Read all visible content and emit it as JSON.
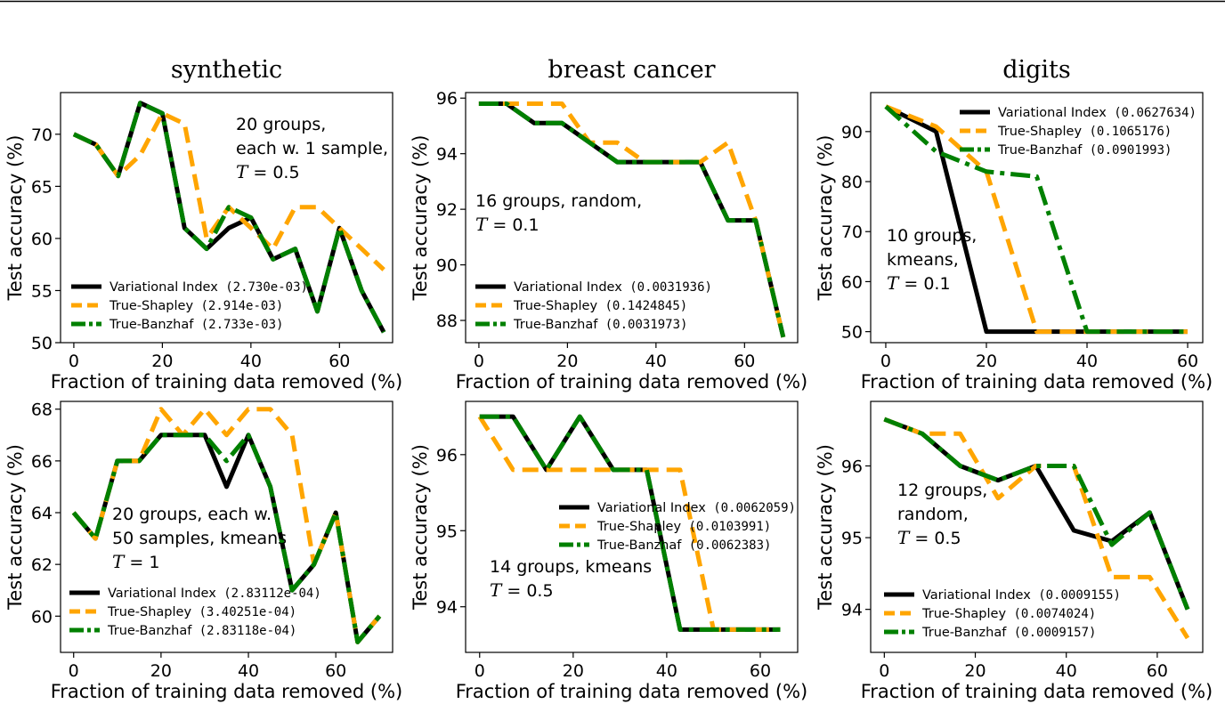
{
  "colors": {
    "variational": "#000000",
    "shapley": "#FFA500",
    "banzhaf": "#008000"
  },
  "series_names": [
    "Variational Index",
    "True-Shapley",
    "True-Banzhaf"
  ],
  "xlabel": "Fraction of training data removed (%)",
  "ylabel": "Test accuracy (%)",
  "chart_data": [
    {
      "type": "line",
      "title": "synthetic",
      "xlim": [
        -3,
        72
      ],
      "ylim": [
        50,
        74
      ],
      "xticks": [
        0,
        20,
        40,
        60
      ],
      "yticks": [
        50,
        55,
        60,
        65,
        70
      ],
      "annotation": [
        "20 groups,",
        "each w. 1 sample,"
      ],
      "T_label": "T",
      "T_value": " = 0.5",
      "series": [
        {
          "name": "Variational Index",
          "legend": "(2.730e-03)",
          "x": [
            0,
            5,
            10,
            15,
            20,
            25,
            30,
            35,
            40,
            45,
            50,
            55,
            60,
            65,
            70
          ],
          "y": [
            70,
            69,
            66,
            73,
            72,
            61,
            59,
            61,
            62,
            58,
            59,
            53,
            61,
            55,
            51
          ]
        },
        {
          "name": "True-Shapley",
          "legend": "(2.914e-03)",
          "x": [
            0,
            5,
            10,
            15,
            20,
            25,
            30,
            35,
            40,
            45,
            50,
            55,
            60,
            65,
            70
          ],
          "y": [
            70,
            69,
            66,
            68,
            72,
            71,
            60,
            63,
            61,
            59,
            63,
            63,
            61,
            59,
            57
          ]
        },
        {
          "name": "True-Banzhaf",
          "legend": "(2.733e-03)",
          "x": [
            0,
            5,
            10,
            15,
            20,
            25,
            30,
            35,
            40,
            45,
            50,
            55,
            60,
            65,
            70
          ],
          "y": [
            70,
            69,
            66,
            73,
            72,
            61,
            59,
            63,
            62,
            58,
            59,
            53,
            61,
            55,
            51
          ]
        }
      ]
    },
    {
      "type": "line",
      "title": "breast cancer",
      "xlim": [
        -3,
        72
      ],
      "ylim": [
        87.2,
        96.2
      ],
      "xticks": [
        0,
        20,
        40,
        60
      ],
      "yticks": [
        88,
        90,
        92,
        94,
        96
      ],
      "annotation": [
        "16 groups, random,"
      ],
      "T_label": "T",
      "T_value": " = 0.1",
      "series": [
        {
          "name": "Variational Index",
          "legend": "(0.0031936)",
          "x": [
            0,
            6.25,
            12.5,
            18.75,
            25,
            31.25,
            37.5,
            43.75,
            50,
            56.25,
            62.5,
            68.75
          ],
          "y": [
            95.8,
            95.8,
            95.1,
            95.1,
            94.4,
            93.7,
            93.7,
            93.7,
            93.7,
            91.6,
            91.6,
            87.4
          ]
        },
        {
          "name": "True-Shapley",
          "legend": "(0.1424845)",
          "x": [
            0,
            6.25,
            12.5,
            18.75,
            25,
            31.25,
            37.5,
            43.75,
            50,
            56.25,
            62.5,
            68.75
          ],
          "y": [
            95.8,
            95.8,
            95.8,
            95.8,
            94.4,
            94.4,
            93.7,
            93.7,
            93.7,
            94.4,
            91.6,
            87.4
          ]
        },
        {
          "name": "True-Banzhaf",
          "legend": "(0.0031973)",
          "x": [
            0,
            6.25,
            12.5,
            18.75,
            25,
            31.25,
            37.5,
            43.75,
            50,
            56.25,
            62.5,
            68.75
          ],
          "y": [
            95.8,
            95.8,
            95.1,
            95.1,
            94.4,
            93.7,
            93.7,
            93.7,
            93.7,
            91.6,
            91.6,
            87.4
          ]
        }
      ]
    },
    {
      "type": "line",
      "title": "digits",
      "xlim": [
        -3,
        63
      ],
      "ylim": [
        47.8,
        97.8
      ],
      "xticks": [
        0,
        20,
        40,
        60
      ],
      "yticks": [
        50,
        60,
        70,
        80,
        90
      ],
      "annotation": [
        "10 groups,",
        "kmeans,"
      ],
      "T_label": "T",
      "T_value": " = 0.1",
      "series": [
        {
          "name": "Variational Index",
          "legend": "(0.0627634)",
          "x": [
            0,
            10,
            20,
            30,
            40,
            50,
            60
          ],
          "y": [
            95,
            90,
            50,
            50,
            50,
            50,
            50
          ]
        },
        {
          "name": "True-Shapley",
          "legend": "(0.1065176)",
          "x": [
            0,
            10,
            20,
            30,
            40,
            50,
            60
          ],
          "y": [
            95,
            91,
            82,
            50,
            50,
            50,
            50
          ]
        },
        {
          "name": "True-Banzhaf",
          "legend": "(0.0901993)",
          "x": [
            0,
            10,
            20,
            30,
            40,
            50,
            60
          ],
          "y": [
            95,
            86,
            82,
            81,
            50,
            50,
            50
          ]
        }
      ]
    },
    {
      "type": "line",
      "title": "",
      "xlim": [
        -3,
        73
      ],
      "ylim": [
        58.6,
        68.3
      ],
      "xticks": [
        0,
        20,
        40,
        60
      ],
      "yticks": [
        60,
        62,
        64,
        66,
        68
      ],
      "annotation": [
        "20 groups, each w.",
        "50 samples, kmeans"
      ],
      "T_label": "T",
      "T_value": " = 1",
      "series": [
        {
          "name": "Variational Index",
          "legend": "(2.83112e-04)",
          "x": [
            0,
            5,
            10,
            15,
            20,
            25,
            30,
            35,
            40,
            45,
            50,
            55,
            60,
            65,
            70
          ],
          "y": [
            64,
            63,
            66,
            66,
            67,
            67,
            67,
            65,
            67,
            65,
            61,
            62,
            64,
            59,
            60
          ]
        },
        {
          "name": "True-Shapley",
          "legend": "(3.40251e-04)",
          "x": [
            0,
            5,
            10,
            15,
            20,
            25,
            30,
            35,
            40,
            45,
            50,
            55,
            60,
            65,
            70
          ],
          "y": [
            64,
            63,
            66,
            66,
            68,
            67,
            68,
            67,
            68,
            68,
            67,
            62,
            64,
            59,
            60
          ]
        },
        {
          "name": "True-Banzhaf",
          "legend": "(2.83118e-04)",
          "x": [
            0,
            5,
            10,
            15,
            20,
            25,
            30,
            35,
            40,
            45,
            50,
            55,
            60,
            65,
            70
          ],
          "y": [
            64,
            63,
            66,
            66,
            67,
            67,
            67,
            66,
            67,
            65,
            61,
            62,
            64,
            59,
            60
          ]
        }
      ]
    },
    {
      "type": "line",
      "title": "",
      "xlim": [
        -3,
        68
      ],
      "ylim": [
        93.4,
        96.7
      ],
      "xticks": [
        0,
        20,
        40,
        60
      ],
      "yticks": [
        94,
        95,
        96
      ],
      "annotation": [
        "14 groups, kmeans"
      ],
      "T_label": "T",
      "T_value": " = 0.5",
      "series": [
        {
          "name": "Variational Index",
          "legend": "(0.0062059)",
          "x": [
            0,
            7.14,
            14.29,
            21.43,
            28.57,
            35.71,
            42.86,
            50,
            57.14,
            64.29
          ],
          "y": [
            96.5,
            96.5,
            95.8,
            96.5,
            95.8,
            95.8,
            93.7,
            93.7,
            93.7,
            93.7
          ]
        },
        {
          "name": "True-Shapley",
          "legend": "(0.0103991)",
          "x": [
            0,
            7.14,
            14.29,
            21.43,
            28.57,
            35.71,
            42.86,
            50,
            57.14,
            64.29
          ],
          "y": [
            96.5,
            95.8,
            95.8,
            95.8,
            95.8,
            95.8,
            95.8,
            93.7,
            93.7,
            93.7
          ]
        },
        {
          "name": "True-Banzhaf",
          "legend": "(0.0062383)",
          "x": [
            0,
            7.14,
            14.29,
            21.43,
            28.57,
            35.71,
            42.86,
            50,
            57.14,
            64.29
          ],
          "y": [
            96.5,
            96.5,
            95.8,
            96.5,
            95.8,
            95.8,
            93.7,
            93.7,
            93.7,
            93.7
          ]
        }
      ]
    },
    {
      "type": "line",
      "title": "",
      "xlim": [
        -3,
        70
      ],
      "ylim": [
        93.4,
        96.9
      ],
      "xticks": [
        0,
        20,
        40,
        60
      ],
      "yticks": [
        94,
        95,
        96
      ],
      "annotation": [
        "12 groups,",
        "random,"
      ],
      "T_label": "T",
      "T_value": " = 0.5",
      "series": [
        {
          "name": "Variational Index",
          "legend": "(0.0009155)",
          "x": [
            0,
            8.33,
            16.67,
            25,
            33.33,
            41.67,
            50,
            58.33,
            66.67
          ],
          "y": [
            96.65,
            96.45,
            96.0,
            95.8,
            96.0,
            95.1,
            94.95,
            95.35,
            94.0
          ]
        },
        {
          "name": "True-Shapley",
          "legend": "(0.0074024)",
          "x": [
            0,
            8.33,
            16.67,
            25,
            33.33,
            41.67,
            50,
            58.33,
            66.67
          ],
          "y": [
            96.65,
            96.45,
            96.45,
            95.55,
            96.0,
            96.0,
            94.45,
            94.45,
            93.6
          ]
        },
        {
          "name": "True-Banzhaf",
          "legend": "(0.0009157)",
          "x": [
            0,
            8.33,
            16.67,
            25,
            33.33,
            41.67,
            50,
            58.33,
            66.67
          ],
          "y": [
            96.65,
            96.45,
            96.0,
            95.8,
            96.0,
            96.0,
            94.9,
            95.35,
            94.0
          ]
        }
      ]
    }
  ]
}
